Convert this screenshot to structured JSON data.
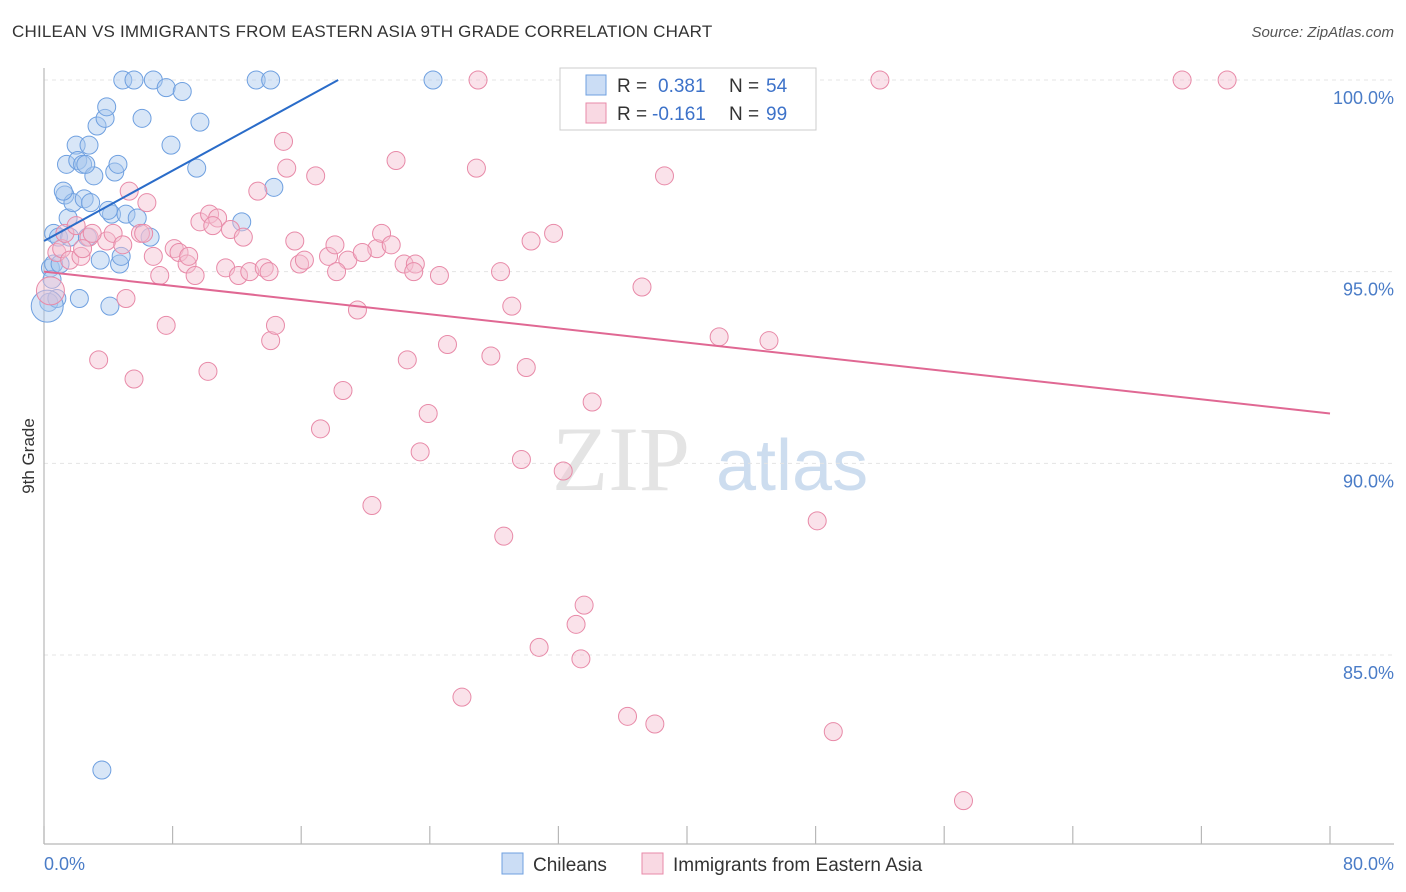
{
  "header": {
    "title": "CHILEAN VS IMMIGRANTS FROM EASTERN ASIA 9TH GRADE CORRELATION CHART",
    "source": "Source: ZipAtlas.com"
  },
  "watermark": {
    "zip": "ZIP",
    "atlas": "atlas"
  },
  "colors": {
    "blue": "#6fa0e0",
    "blue_fill": "#a9c7ee",
    "blue_line": "#2a6cc9",
    "pink": "#e88aa8",
    "pink_fill": "#f5bfd0",
    "pink_line": "#e06893",
    "tick": "#4a7cc7"
  },
  "chart_data": {
    "type": "scatter",
    "title": "CHILEAN VS IMMIGRANTS FROM EASTERN ASIA 9TH GRADE CORRELATION CHART",
    "xlabel": "",
    "ylabel": "9th Grade",
    "xlim": [
      0,
      80
    ],
    "ylim": [
      80.5,
      100.5
    ],
    "x_tick_labels": [
      "0.0%",
      "80.0%"
    ],
    "y_ticks": [
      {
        "value": 100,
        "label": "100.0%"
      },
      {
        "value": 95,
        "label": "95.0%"
      },
      {
        "value": 90,
        "label": "90.0%"
      },
      {
        "value": 85,
        "label": "85.0%"
      }
    ],
    "legend_stats": [
      {
        "r_label": "R =",
        "r_value": "0.381",
        "n_label": "N =",
        "n_value": "54"
      },
      {
        "r_label": "R =",
        "r_value": "-0.161",
        "n_label": "N =",
        "n_value": "99"
      }
    ],
    "series": [
      {
        "name": "Chileans",
        "trend": {
          "x": [
            0.0,
            18.3
          ],
          "y": [
            95.8,
            100.0
          ]
        },
        "points": [
          [
            0.3,
            94.2
          ],
          [
            0.4,
            95.1
          ],
          [
            0.5,
            94.8
          ],
          [
            0.6,
            95.2
          ],
          [
            0.6,
            96.0
          ],
          [
            0.8,
            94.3
          ],
          [
            0.9,
            95.9
          ],
          [
            1.0,
            95.2
          ],
          [
            1.3,
            97.0
          ],
          [
            1.4,
            97.8
          ],
          [
            1.5,
            96.4
          ],
          [
            1.6,
            95.9
          ],
          [
            1.8,
            96.8
          ],
          [
            2.0,
            98.3
          ],
          [
            2.1,
            97.9
          ],
          [
            2.2,
            94.3
          ],
          [
            2.4,
            97.8
          ],
          [
            2.5,
            96.9
          ],
          [
            2.7,
            95.9
          ],
          [
            2.8,
            98.3
          ],
          [
            2.9,
            96.8
          ],
          [
            3.1,
            97.5
          ],
          [
            3.3,
            98.8
          ],
          [
            3.5,
            95.3
          ],
          [
            3.8,
            99.0
          ],
          [
            3.9,
            99.3
          ],
          [
            4.1,
            94.1
          ],
          [
            4.2,
            96.5
          ],
          [
            4.4,
            97.6
          ],
          [
            4.6,
            97.8
          ],
          [
            4.7,
            95.2
          ],
          [
            4.8,
            95.4
          ],
          [
            4.9,
            100.0
          ],
          [
            5.1,
            96.5
          ],
          [
            5.6,
            100.0
          ],
          [
            5.8,
            96.4
          ],
          [
            6.1,
            99.0
          ],
          [
            6.6,
            95.9
          ],
          [
            6.8,
            100.0
          ],
          [
            7.6,
            99.8
          ],
          [
            7.9,
            98.3
          ],
          [
            8.6,
            99.7
          ],
          [
            9.5,
            97.7
          ],
          [
            9.7,
            98.9
          ],
          [
            12.3,
            96.3
          ],
          [
            13.2,
            100.0
          ],
          [
            14.1,
            100.0
          ],
          [
            14.3,
            97.2
          ],
          [
            24.2,
            100.0
          ],
          [
            3.6,
            82.0
          ],
          [
            0.2,
            94.1
          ],
          [
            1.2,
            97.1
          ],
          [
            2.6,
            97.8
          ],
          [
            4.0,
            96.6
          ]
        ]
      },
      {
        "name": "Immigrants from Eastern Asia",
        "trend": {
          "x": [
            0.0,
            80.0
          ],
          "y": [
            95.0,
            91.3
          ]
        },
        "points": [
          [
            0.4,
            94.5
          ],
          [
            0.8,
            95.5
          ],
          [
            1.1,
            95.6
          ],
          [
            1.3,
            96.0
          ],
          [
            1.6,
            95.3
          ],
          [
            2.0,
            96.2
          ],
          [
            2.3,
            95.4
          ],
          [
            2.8,
            95.9
          ],
          [
            3.4,
            92.7
          ],
          [
            3.9,
            95.8
          ],
          [
            4.3,
            96.0
          ],
          [
            4.9,
            95.7
          ],
          [
            5.1,
            94.3
          ],
          [
            5.3,
            97.1
          ],
          [
            5.6,
            92.2
          ],
          [
            6.0,
            96.0
          ],
          [
            6.4,
            96.8
          ],
          [
            6.8,
            95.4
          ],
          [
            7.2,
            94.9
          ],
          [
            7.6,
            93.6
          ],
          [
            8.1,
            95.6
          ],
          [
            8.4,
            95.5
          ],
          [
            8.9,
            95.2
          ],
          [
            9.4,
            94.9
          ],
          [
            9.7,
            96.3
          ],
          [
            10.2,
            92.4
          ],
          [
            10.3,
            96.5
          ],
          [
            10.8,
            96.4
          ],
          [
            11.3,
            95.1
          ],
          [
            11.6,
            96.1
          ],
          [
            12.1,
            94.9
          ],
          [
            12.4,
            95.9
          ],
          [
            12.8,
            95.0
          ],
          [
            13.3,
            97.1
          ],
          [
            13.7,
            95.1
          ],
          [
            14.1,
            93.2
          ],
          [
            14.4,
            93.6
          ],
          [
            14.9,
            98.4
          ],
          [
            15.1,
            97.7
          ],
          [
            15.6,
            95.8
          ],
          [
            15.9,
            95.2
          ],
          [
            16.2,
            95.3
          ],
          [
            16.9,
            97.5
          ],
          [
            17.2,
            90.9
          ],
          [
            17.7,
            95.4
          ],
          [
            18.1,
            95.7
          ],
          [
            18.6,
            91.9
          ],
          [
            18.9,
            95.3
          ],
          [
            19.5,
            94.0
          ],
          [
            20.4,
            88.9
          ],
          [
            20.7,
            95.6
          ],
          [
            21.0,
            96.0
          ],
          [
            21.6,
            95.7
          ],
          [
            21.9,
            97.9
          ],
          [
            22.4,
            95.2
          ],
          [
            22.6,
            92.7
          ],
          [
            23.1,
            95.2
          ],
          [
            23.4,
            90.3
          ],
          [
            23.9,
            91.3
          ],
          [
            24.6,
            94.9
          ],
          [
            25.1,
            93.1
          ],
          [
            26.0,
            83.9
          ],
          [
            26.9,
            97.7
          ],
          [
            27.8,
            92.8
          ],
          [
            28.4,
            95.0
          ],
          [
            28.6,
            88.1
          ],
          [
            29.1,
            94.1
          ],
          [
            29.7,
            90.1
          ],
          [
            30.0,
            92.5
          ],
          [
            30.3,
            95.8
          ],
          [
            30.8,
            85.2
          ],
          [
            31.7,
            96.0
          ],
          [
            32.3,
            89.8
          ],
          [
            33.1,
            85.8
          ],
          [
            33.4,
            84.9
          ],
          [
            33.6,
            86.3
          ],
          [
            34.1,
            91.6
          ],
          [
            36.3,
            83.4
          ],
          [
            37.2,
            94.6
          ],
          [
            38.0,
            83.2
          ],
          [
            38.6,
            97.5
          ],
          [
            42.0,
            93.3
          ],
          [
            45.1,
            93.2
          ],
          [
            48.1,
            88.5
          ],
          [
            49.1,
            83.0
          ],
          [
            52.0,
            100.0
          ],
          [
            57.2,
            81.2
          ],
          [
            70.8,
            100.0
          ],
          [
            73.6,
            100.0
          ],
          [
            27.0,
            100.0
          ],
          [
            3.0,
            96.0
          ],
          [
            6.2,
            96.0
          ],
          [
            9.0,
            95.4
          ],
          [
            14.0,
            95.0
          ],
          [
            19.8,
            95.5
          ],
          [
            23.0,
            95.0
          ],
          [
            10.5,
            96.2
          ],
          [
            18.2,
            95.0
          ],
          [
            2.4,
            95.6
          ]
        ]
      }
    ]
  },
  "bottom_legend": [
    "Chileans",
    "Immigrants from Eastern Asia"
  ]
}
